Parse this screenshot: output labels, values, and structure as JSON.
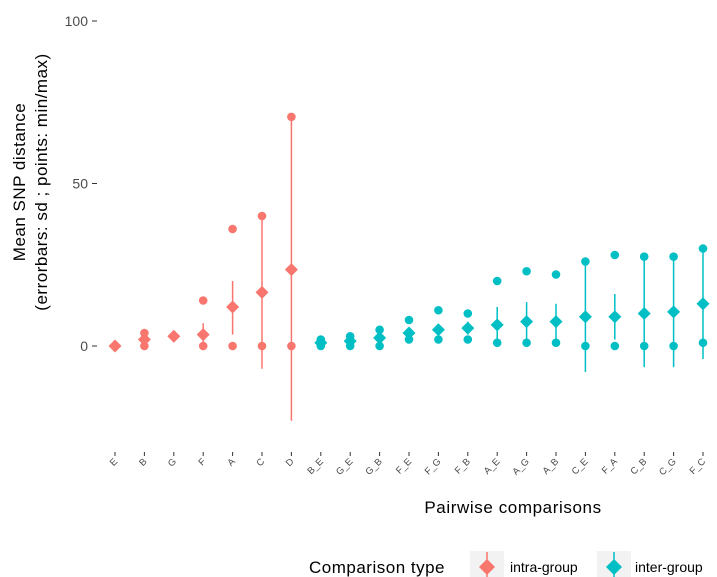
{
  "chart_data": {
    "type": "scatter",
    "xlabel": "Pairwise comparisons",
    "ylabel_lines": [
      "Mean SNP distance",
      "(errorbars: sd ; points: min/max)"
    ],
    "ylim": [
      -30,
      100
    ],
    "yticks": [
      0,
      50,
      100
    ],
    "grid": false,
    "legend": {
      "title": "Comparison type",
      "position": "bottom",
      "entries": [
        {
          "key": "intra",
          "label": "intra-group",
          "color": "#F8766D"
        },
        {
          "key": "inter",
          "label": "inter-group",
          "color": "#00BFC4"
        }
      ]
    },
    "categories": [
      {
        "label": "E",
        "type": "intra",
        "mean": 0,
        "sd_low": 0,
        "sd_high": 0,
        "min": 0,
        "max": 0
      },
      {
        "label": "B",
        "type": "intra",
        "mean": 2,
        "sd_low": 0.5,
        "sd_high": 3.5,
        "min": 0,
        "max": 4
      },
      {
        "label": "G",
        "type": "intra",
        "mean": 3,
        "sd_low": 3,
        "sd_high": 3,
        "min": 3,
        "max": 3
      },
      {
        "label": "F",
        "type": "intra",
        "mean": 3.5,
        "sd_low": 0,
        "sd_high": 7,
        "min": 0,
        "max": 14
      },
      {
        "label": "A",
        "type": "intra",
        "mean": 12,
        "sd_low": 3.5,
        "sd_high": 20,
        "min": 0,
        "max": 36
      },
      {
        "label": "C",
        "type": "intra",
        "mean": 16.5,
        "sd_low": -7,
        "sd_high": 40,
        "min": 0,
        "max": 40
      },
      {
        "label": "D",
        "type": "intra",
        "mean": 23.5,
        "sd_low": -23,
        "sd_high": 70.5,
        "min": 0,
        "max": 70.5
      },
      {
        "label": "B_E",
        "type": "inter",
        "mean": 1,
        "sd_low": 0.2,
        "sd_high": 1.8,
        "min": 0,
        "max": 2
      },
      {
        "label": "G_E",
        "type": "inter",
        "mean": 1.5,
        "sd_low": 0.5,
        "sd_high": 2.5,
        "min": 0,
        "max": 3
      },
      {
        "label": "G_B",
        "type": "inter",
        "mean": 2.5,
        "sd_low": 1.5,
        "sd_high": 3.5,
        "min": 0,
        "max": 5
      },
      {
        "label": "F_E",
        "type": "inter",
        "mean": 4,
        "sd_low": 2.5,
        "sd_high": 5.5,
        "min": 2,
        "max": 8
      },
      {
        "label": "F_G",
        "type": "inter",
        "mean": 5,
        "sd_low": 3.5,
        "sd_high": 6.5,
        "min": 2,
        "max": 11
      },
      {
        "label": "F_B",
        "type": "inter",
        "mean": 5.5,
        "sd_low": 3.5,
        "sd_high": 7.5,
        "min": 2,
        "max": 10
      },
      {
        "label": "A_E",
        "type": "inter",
        "mean": 6.5,
        "sd_low": 1.5,
        "sd_high": 12,
        "min": 1,
        "max": 20
      },
      {
        "label": "A_G",
        "type": "inter",
        "mean": 7.5,
        "sd_low": 1.5,
        "sd_high": 13.5,
        "min": 1,
        "max": 23
      },
      {
        "label": "A_B",
        "type": "inter",
        "mean": 7.5,
        "sd_low": 1.5,
        "sd_high": 13,
        "min": 1,
        "max": 22
      },
      {
        "label": "C_E",
        "type": "inter",
        "mean": 9,
        "sd_low": -8,
        "sd_high": 26,
        "min": 0,
        "max": 26
      },
      {
        "label": "F_A",
        "type": "inter",
        "mean": 9,
        "sd_low": 2,
        "sd_high": 16,
        "min": 0,
        "max": 28
      },
      {
        "label": "C_B",
        "type": "inter",
        "mean": 10,
        "sd_low": -6.5,
        "sd_high": 27.5,
        "min": 0,
        "max": 27.5
      },
      {
        "label": "C_G",
        "type": "inter",
        "mean": 10.5,
        "sd_low": -6.5,
        "sd_high": 27.5,
        "min": 0,
        "max": 27.5
      },
      {
        "label": "F_C",
        "type": "inter",
        "mean": 13,
        "sd_low": -4,
        "sd_high": 30,
        "min": 1,
        "max": 30
      }
    ]
  }
}
